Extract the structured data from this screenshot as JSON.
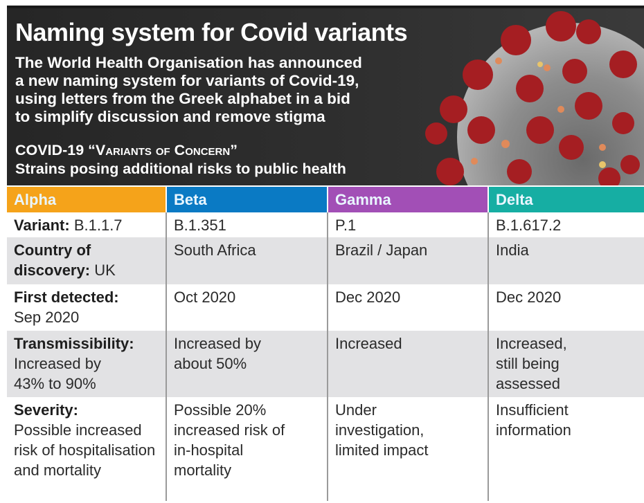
{
  "header": {
    "title": "Naming system for Covid variants",
    "intro_lines": [
      "The World Health Organisation has announced",
      "a new naming system for variants of Covid-19,",
      "using letters from the Greek alphabet in a bid",
      "to simplify discussion and remove stigma"
    ],
    "section_title": "COVID-19 “Variants of Concern”",
    "section_subtitle": "Strains posing additional risks to public health",
    "image": "coronavirus-illustration"
  },
  "table": {
    "columns": [
      {
        "label": "Alpha",
        "color": "#f5a31a"
      },
      {
        "label": "Beta",
        "color": "#0a7ac4"
      },
      {
        "label": "Gamma",
        "color": "#a24fb6"
      },
      {
        "label": "Delta",
        "color": "#16aea3"
      }
    ],
    "rows": [
      {
        "label": "Variant:",
        "alpha": "B.1.1.7",
        "beta": "B.1.351",
        "gamma": "P.1",
        "delta": "B.1.617.2"
      },
      {
        "label": "Country of discovery:",
        "alpha": "UK",
        "beta": "South Africa",
        "gamma": "Brazil / Japan",
        "delta": "India"
      },
      {
        "label": "First detected:",
        "alpha": "Sep 2020",
        "beta": "Oct 2020",
        "gamma": "Dec 2020",
        "delta": "Dec 2020"
      },
      {
        "label": "Transmissibility:",
        "alpha": "Increased by 43% to 90%",
        "beta": "Increased by about 50%",
        "gamma": "Increased",
        "delta": "Increased, still being assessed"
      },
      {
        "label": "Severity:",
        "alpha": "Possible increased risk of hospitalisation and mortality",
        "beta": "Possible 20% increased risk of in-hospital mortality",
        "gamma": "Under investigation, limited impact",
        "delta": "Insufficient information"
      }
    ]
  }
}
